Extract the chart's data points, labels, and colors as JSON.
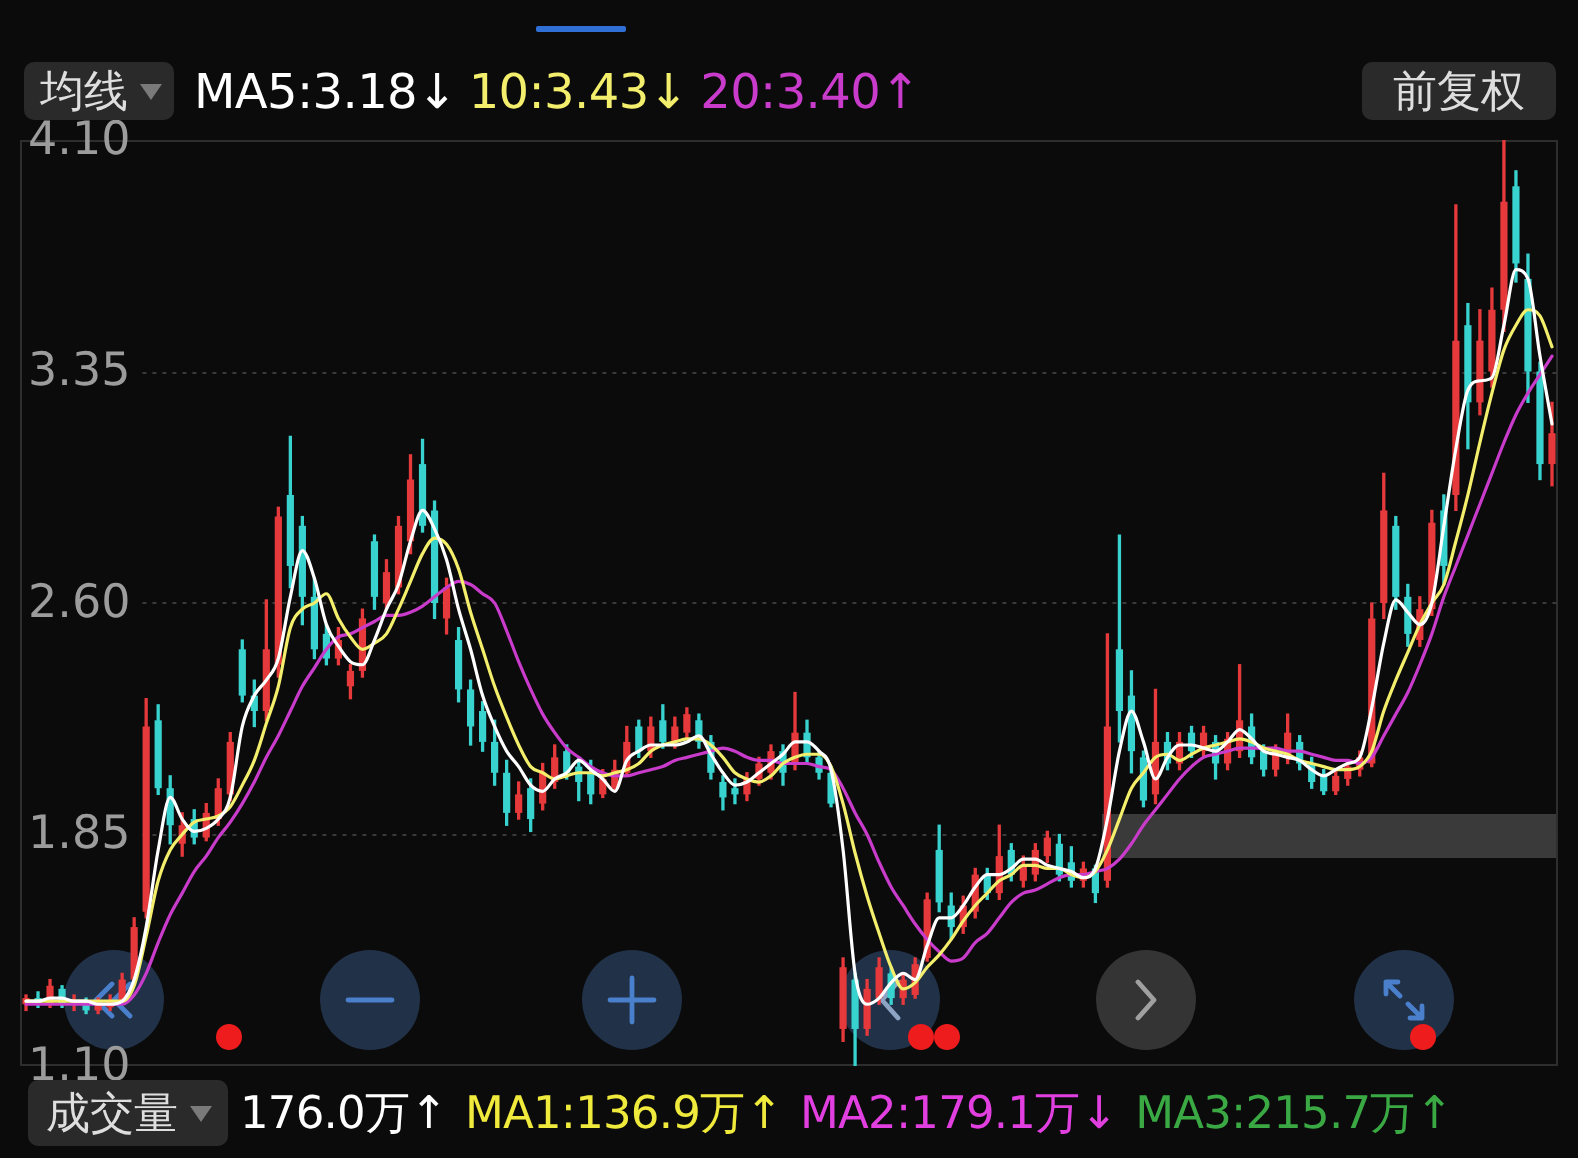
{
  "chart_data": {
    "type": "candlestick",
    "legend_title": "均线",
    "legend": "top left",
    "tick_labels": "y",
    "grid": "y",
    "marker": "none",
    "line_style": "solid",
    "annotations": [
      "前复权",
      "成交量",
      "176.0万↑",
      "MA1:136.9万↑",
      "MA2:179.1万↓",
      "MA3:215.7万↑"
    ],
    "ylim": [
      1.1,
      4.1
    ],
    "yticks": [
      {
        "value": 1.1,
        "label": "1.10"
      },
      {
        "value": 1.85,
        "label": "1.85"
      },
      {
        "value": 2.6,
        "label": "2.60"
      },
      {
        "value": 3.35,
        "label": "3.35"
      },
      {
        "value": 4.1,
        "label": "4.10"
      }
    ],
    "categories": [
      null,
      null,
      null,
      null,
      null,
      null,
      null,
      null,
      null,
      null,
      null,
      null,
      null,
      null,
      null,
      null,
      null,
      null,
      null,
      null,
      null,
      null,
      null,
      null,
      null,
      null,
      null,
      null,
      null,
      null,
      null,
      null,
      null,
      null,
      null,
      null,
      null,
      null,
      null,
      null,
      null,
      null,
      null,
      null,
      null,
      null,
      null,
      null,
      null,
      null,
      null,
      null,
      null,
      null,
      null,
      null,
      null,
      null,
      null,
      null,
      null,
      null,
      null,
      null,
      null,
      null,
      null,
      null,
      null,
      null,
      null,
      null,
      null,
      null,
      null,
      null,
      null,
      null,
      null,
      null,
      null,
      null,
      null,
      null,
      null,
      null,
      null,
      null,
      null,
      null,
      null,
      null,
      null,
      null,
      null,
      null,
      null,
      null,
      null,
      null,
      null,
      null,
      null,
      null,
      null,
      null,
      null,
      null,
      null,
      null,
      null,
      null,
      null,
      null,
      null,
      null,
      null,
      null,
      null,
      null,
      null,
      null,
      null,
      null,
      null,
      null,
      null,
      null
    ],
    "ohlc": [
      [
        1.3,
        1.33,
        1.28,
        1.32
      ],
      [
        1.32,
        1.34,
        1.29,
        1.3
      ],
      [
        1.3,
        1.38,
        1.29,
        1.36
      ],
      [
        1.35,
        1.36,
        1.29,
        1.3
      ],
      [
        1.3,
        1.33,
        1.28,
        1.31
      ],
      [
        1.31,
        1.32,
        1.27,
        1.28
      ],
      [
        1.28,
        1.32,
        1.27,
        1.3
      ],
      [
        1.29,
        1.33,
        1.28,
        1.31
      ],
      [
        1.31,
        1.4,
        1.3,
        1.38
      ],
      [
        1.38,
        1.58,
        1.37,
        1.55
      ],
      [
        1.6,
        2.29,
        1.58,
        2.2
      ],
      [
        2.22,
        2.27,
        1.98,
        2.0
      ],
      [
        2.0,
        2.04,
        1.82,
        1.88
      ],
      [
        1.82,
        1.92,
        1.78,
        1.88
      ],
      [
        1.9,
        1.93,
        1.82,
        1.84
      ],
      [
        1.84,
        1.95,
        1.83,
        1.92
      ],
      [
        1.9,
        2.03,
        1.88,
        2.0
      ],
      [
        1.98,
        2.18,
        1.96,
        2.15
      ],
      [
        2.45,
        2.48,
        2.28,
        2.3
      ],
      [
        2.3,
        2.35,
        2.2,
        2.25
      ],
      [
        2.25,
        2.61,
        2.22,
        2.45
      ],
      [
        2.4,
        2.91,
        2.36,
        2.88
      ],
      [
        2.95,
        3.14,
        2.65,
        2.72
      ],
      [
        2.85,
        2.88,
        2.53,
        2.62
      ],
      [
        2.62,
        2.68,
        2.42,
        2.45
      ],
      [
        2.5,
        2.53,
        2.4,
        2.42
      ],
      [
        2.42,
        2.52,
        2.4,
        2.48
      ],
      [
        2.33,
        2.4,
        2.29,
        2.38
      ],
      [
        2.38,
        2.58,
        2.36,
        2.55
      ],
      [
        2.8,
        2.82,
        2.58,
        2.62
      ],
      [
        2.6,
        2.74,
        2.58,
        2.7
      ],
      [
        2.65,
        2.88,
        2.63,
        2.85
      ],
      [
        2.8,
        3.08,
        2.76,
        3.0
      ],
      [
        3.05,
        3.13,
        2.83,
        2.85
      ],
      [
        2.9,
        2.93,
        2.55,
        2.6
      ],
      [
        2.55,
        2.68,
        2.5,
        2.65
      ],
      [
        2.48,
        2.52,
        2.28,
        2.32
      ],
      [
        2.32,
        2.35,
        2.14,
        2.2
      ],
      [
        2.25,
        2.28,
        2.12,
        2.15
      ],
      [
        2.15,
        2.22,
        2.01,
        2.05
      ],
      [
        2.05,
        2.09,
        1.88,
        1.92
      ],
      [
        1.92,
        2.02,
        1.9,
        1.98
      ],
      [
        2.0,
        2.03,
        1.86,
        1.9
      ],
      [
        1.95,
        2.08,
        1.93,
        2.05
      ],
      [
        2.02,
        2.14,
        2.0,
        2.1
      ],
      [
        2.12,
        2.14,
        2.03,
        2.05
      ],
      [
        2.07,
        2.1,
        1.96,
        2.02
      ],
      [
        2.05,
        2.09,
        1.95,
        1.98
      ],
      [
        1.98,
        2.06,
        1.97,
        2.03
      ],
      [
        2.0,
        2.09,
        1.99,
        2.06
      ],
      [
        2.05,
        2.2,
        2.04,
        2.15
      ],
      [
        2.2,
        2.22,
        2.1,
        2.12
      ],
      [
        2.12,
        2.23,
        2.1,
        2.2
      ],
      [
        2.22,
        2.27,
        2.13,
        2.15
      ],
      [
        2.15,
        2.23,
        2.13,
        2.2
      ],
      [
        2.18,
        2.26,
        2.16,
        2.24
      ],
      [
        2.22,
        2.24,
        2.13,
        2.15
      ],
      [
        2.15,
        2.17,
        2.03,
        2.05
      ],
      [
        2.02,
        2.04,
        1.93,
        1.97
      ],
      [
        2.0,
        2.03,
        1.95,
        1.98
      ],
      [
        1.98,
        2.05,
        1.96,
        2.03
      ],
      [
        2.03,
        2.1,
        2.01,
        2.08
      ],
      [
        2.05,
        2.14,
        2.03,
        2.12
      ],
      [
        2.12,
        2.14,
        2.01,
        2.05
      ],
      [
        2.08,
        2.31,
        2.06,
        2.18
      ],
      [
        2.18,
        2.22,
        2.08,
        2.1
      ],
      [
        2.1,
        2.12,
        2.03,
        2.05
      ],
      [
        2.05,
        2.07,
        1.94,
        1.95
      ],
      [
        1.22,
        1.45,
        1.18,
        1.42
      ],
      [
        1.38,
        1.4,
        1.1,
        1.22
      ],
      [
        1.22,
        1.38,
        1.2,
        1.35
      ],
      [
        1.32,
        1.45,
        1.3,
        1.42
      ],
      [
        1.4,
        1.42,
        1.3,
        1.32
      ],
      [
        1.32,
        1.4,
        1.3,
        1.38
      ],
      [
        1.33,
        1.45,
        1.32,
        1.43
      ],
      [
        1.45,
        1.66,
        1.44,
        1.64
      ],
      [
        1.8,
        1.88,
        1.6,
        1.63
      ],
      [
        1.62,
        1.66,
        1.51,
        1.55
      ],
      [
        1.55,
        1.65,
        1.53,
        1.62
      ],
      [
        1.6,
        1.74,
        1.58,
        1.72
      ],
      [
        1.72,
        1.74,
        1.64,
        1.66
      ],
      [
        1.66,
        1.88,
        1.64,
        1.78
      ],
      [
        1.8,
        1.82,
        1.7,
        1.72
      ],
      [
        1.7,
        1.78,
        1.68,
        1.75
      ],
      [
        1.72,
        1.82,
        1.7,
        1.8
      ],
      [
        1.78,
        1.86,
        1.76,
        1.84
      ],
      [
        1.82,
        1.85,
        1.7,
        1.72
      ],
      [
        1.76,
        1.81,
        1.68,
        1.7
      ],
      [
        1.7,
        1.76,
        1.68,
        1.74
      ],
      [
        1.74,
        1.75,
        1.63,
        1.66
      ],
      [
        1.7,
        2.5,
        1.68,
        2.2
      ],
      [
        2.45,
        2.82,
        2.15,
        2.25
      ],
      [
        2.3,
        2.38,
        2.05,
        2.12
      ],
      [
        2.1,
        2.12,
        1.94,
        1.96
      ],
      [
        1.98,
        2.32,
        1.95,
        2.15
      ],
      [
        2.15,
        2.18,
        2.06,
        2.08
      ],
      [
        2.08,
        2.18,
        2.06,
        2.15
      ],
      [
        2.18,
        2.2,
        2.1,
        2.12
      ],
      [
        2.12,
        2.2,
        2.1,
        2.18
      ],
      [
        2.15,
        2.17,
        2.03,
        2.08
      ],
      [
        2.08,
        2.18,
        2.06,
        2.16
      ],
      [
        2.12,
        2.4,
        2.1,
        2.22
      ],
      [
        2.2,
        2.24,
        2.08,
        2.1
      ],
      [
        2.12,
        2.14,
        2.04,
        2.06
      ],
      [
        2.06,
        2.14,
        2.04,
        2.12
      ],
      [
        2.1,
        2.24,
        2.08,
        2.18
      ],
      [
        2.15,
        2.17,
        2.06,
        2.08
      ],
      [
        2.08,
        2.1,
        2.0,
        2.02
      ],
      [
        2.04,
        2.06,
        1.98,
        1.99
      ],
      [
        1.99,
        2.06,
        1.98,
        2.04
      ],
      [
        2.03,
        2.09,
        2.01,
        2.07
      ],
      [
        2.06,
        2.12,
        2.04,
        2.1
      ],
      [
        2.08,
        2.6,
        2.07,
        2.55
      ],
      [
        2.6,
        3.02,
        2.55,
        2.9
      ],
      [
        2.85,
        2.88,
        2.58,
        2.62
      ],
      [
        2.62,
        2.66,
        2.46,
        2.5
      ],
      [
        2.48,
        2.62,
        2.46,
        2.58
      ],
      [
        2.58,
        2.9,
        2.56,
        2.86
      ],
      [
        2.9,
        2.95,
        2.66,
        2.72
      ],
      [
        2.95,
        3.89,
        2.9,
        3.45
      ],
      [
        3.5,
        3.57,
        3.1,
        3.25
      ],
      [
        3.25,
        3.55,
        3.21,
        3.45
      ],
      [
        3.35,
        3.62,
        3.3,
        3.55
      ],
      [
        3.55,
        4.1,
        3.48,
        3.9
      ],
      [
        3.95,
        4.0,
        3.64,
        3.7
      ],
      [
        3.65,
        3.73,
        3.25,
        3.35
      ],
      [
        3.35,
        3.38,
        3.0,
        3.05
      ],
      [
        3.05,
        3.25,
        2.98,
        3.15
      ]
    ],
    "colors": [
      "#e5393b",
      "#38d2cf",
      "#e5393b",
      "#38d2cf",
      "#e5393b",
      "#38d2cf",
      "#e5393b",
      "#e5393b",
      "#e5393b",
      "#e5393b",
      "#e5393b",
      "#38d2cf",
      "#38d2cf",
      "#e5393b",
      "#38d2cf",
      "#e5393b",
      "#e5393b",
      "#e5393b",
      "#38d2cf",
      "#38d2cf",
      "#e5393b",
      "#e5393b",
      "#38d2cf",
      "#38d2cf",
      "#38d2cf",
      "#38d2cf",
      "#e5393b",
      "#e5393b",
      "#e5393b",
      "#38d2cf",
      "#e5393b",
      "#e5393b",
      "#e5393b",
      "#38d2cf",
      "#38d2cf",
      "#e5393b",
      "#38d2cf",
      "#38d2cf",
      "#38d2cf",
      "#38d2cf",
      "#38d2cf",
      "#e5393b",
      "#38d2cf",
      "#e5393b",
      "#e5393b",
      "#38d2cf",
      "#38d2cf",
      "#38d2cf",
      "#e5393b",
      "#e5393b",
      "#e5393b",
      "#38d2cf",
      "#e5393b",
      "#38d2cf",
      "#e5393b",
      "#e5393b",
      "#38d2cf",
      "#38d2cf",
      "#38d2cf",
      "#38d2cf",
      "#e5393b",
      "#e5393b",
      "#e5393b",
      "#38d2cf",
      "#e5393b",
      "#38d2cf",
      "#38d2cf",
      "#38d2cf",
      "#e5393b",
      "#38d2cf",
      "#e5393b",
      "#e5393b",
      "#38d2cf",
      "#e5393b",
      "#e5393b",
      "#e5393b",
      "#38d2cf",
      "#38d2cf",
      "#e5393b",
      "#e5393b",
      "#38d2cf",
      "#e5393b",
      "#38d2cf",
      "#e5393b",
      "#e5393b",
      "#e5393b",
      "#38d2cf",
      "#38d2cf",
      "#e5393b",
      "#38d2cf",
      "#e5393b",
      "#38d2cf",
      "#38d2cf",
      "#38d2cf",
      "#e5393b",
      "#38d2cf",
      "#e5393b",
      "#38d2cf",
      "#e5393b",
      "#38d2cf",
      "#e5393b",
      "#e5393b",
      "#38d2cf",
      "#38d2cf",
      "#e5393b",
      "#e5393b",
      "#38d2cf",
      "#38d2cf",
      "#38d2cf",
      "#e5393b",
      "#e5393b",
      "#e5393b",
      "#e5393b",
      "#e5393b",
      "#38d2cf",
      "#38d2cf",
      "#e5393b",
      "#e5393b",
      "#38d2cf",
      "#e5393b",
      "#38d2cf",
      "#e5393b",
      "#e5393b",
      "#e5393b",
      "#38d2cf",
      "#38d2cf",
      "#38d2cf",
      "#e5393b"
    ],
    "series": [
      {
        "type": "line",
        "name": "MA5:3.18↓",
        "color": "#ffffff",
        "values": [
          1.31,
          1.31,
          1.32,
          1.32,
          1.31,
          1.31,
          1.3,
          1.3,
          1.31,
          1.38,
          1.55,
          1.8,
          1.97,
          1.9,
          1.86,
          1.87,
          1.9,
          1.97,
          2.2,
          2.3,
          2.35,
          2.42,
          2.62,
          2.77,
          2.68,
          2.53,
          2.46,
          2.41,
          2.4,
          2.48,
          2.58,
          2.66,
          2.8,
          2.9,
          2.84,
          2.74,
          2.58,
          2.45,
          2.3,
          2.2,
          2.12,
          2.07,
          2.01,
          1.99,
          2.03,
          2.05,
          2.09,
          2.06,
          2.03,
          1.99,
          2.09,
          2.12,
          2.14,
          2.14,
          2.14,
          2.15,
          2.17,
          2.11,
          2.05,
          2.01,
          2.02,
          2.05,
          2.08,
          2.11,
          2.15,
          2.15,
          2.12,
          2.06,
          1.8,
          1.4,
          1.3,
          1.32,
          1.37,
          1.4,
          1.38,
          1.49,
          1.58,
          1.58,
          1.62,
          1.68,
          1.72,
          1.72,
          1.74,
          1.77,
          1.77,
          1.75,
          1.74,
          1.73,
          1.71,
          1.74,
          1.9,
          2.12,
          2.25,
          2.15,
          2.03,
          2.1,
          2.14,
          2.14,
          2.13,
          2.12,
          2.15,
          2.19,
          2.16,
          2.12,
          2.11,
          2.1,
          2.09,
          2.06,
          2.04,
          2.06,
          2.08,
          2.1,
          2.26,
          2.47,
          2.61,
          2.57,
          2.53,
          2.6,
          2.85,
          3.1,
          3.29,
          3.32,
          3.33,
          3.5,
          3.68,
          3.65,
          3.4,
          3.18
        ]
      },
      {
        "type": "line",
        "name": "10:3.43↓",
        "color": "#f3ee6c",
        "values": [
          1.31,
          1.31,
          1.31,
          1.31,
          1.31,
          1.31,
          1.31,
          1.31,
          1.31,
          1.36,
          1.52,
          1.7,
          1.8,
          1.85,
          1.89,
          1.9,
          1.91,
          1.94,
          2.01,
          2.09,
          2.21,
          2.33,
          2.52,
          2.58,
          2.6,
          2.63,
          2.55,
          2.49,
          2.45,
          2.47,
          2.5,
          2.58,
          2.67,
          2.76,
          2.81,
          2.79,
          2.71,
          2.57,
          2.45,
          2.33,
          2.23,
          2.14,
          2.07,
          2.05,
          2.03,
          2.04,
          2.05,
          2.05,
          2.04,
          2.05,
          2.06,
          2.08,
          2.12,
          2.14,
          2.15,
          2.16,
          2.16,
          2.14,
          2.1,
          2.05,
          2.03,
          2.02,
          2.04,
          2.08,
          2.1,
          2.11,
          2.11,
          2.07,
          1.95,
          1.79,
          1.65,
          1.53,
          1.42,
          1.35,
          1.37,
          1.42,
          1.46,
          1.51,
          1.57,
          1.62,
          1.66,
          1.7,
          1.72,
          1.75,
          1.75,
          1.74,
          1.74,
          1.72,
          1.71,
          1.73,
          1.8,
          1.9,
          2.0,
          2.05,
          2.1,
          2.11,
          2.09,
          2.11,
          2.13,
          2.14,
          2.15,
          2.16,
          2.15,
          2.13,
          2.12,
          2.11,
          2.09,
          2.08,
          2.07,
          2.06,
          2.06,
          2.07,
          2.12,
          2.25,
          2.35,
          2.44,
          2.53,
          2.6,
          2.66,
          2.8,
          2.95,
          3.12,
          3.28,
          3.42,
          3.5,
          3.55,
          3.53,
          3.43
        ]
      },
      {
        "type": "line",
        "name": "20:3.40↑",
        "color": "#c93ccb",
        "values": [
          1.3,
          1.3,
          1.3,
          1.3,
          1.3,
          1.3,
          1.3,
          1.3,
          1.3,
          1.33,
          1.4,
          1.5,
          1.59,
          1.66,
          1.73,
          1.78,
          1.84,
          1.89,
          1.95,
          2.02,
          2.1,
          2.17,
          2.25,
          2.33,
          2.39,
          2.45,
          2.49,
          2.5,
          2.52,
          2.54,
          2.56,
          2.56,
          2.57,
          2.59,
          2.62,
          2.65,
          2.67,
          2.66,
          2.63,
          2.6,
          2.51,
          2.41,
          2.32,
          2.24,
          2.18,
          2.13,
          2.1,
          2.07,
          2.05,
          2.04,
          2.04,
          2.05,
          2.06,
          2.07,
          2.09,
          2.1,
          2.11,
          2.12,
          2.13,
          2.12,
          2.1,
          2.09,
          2.09,
          2.08,
          2.08,
          2.08,
          2.07,
          2.06,
          2.0,
          1.92,
          1.85,
          1.76,
          1.68,
          1.62,
          1.56,
          1.51,
          1.47,
          1.44,
          1.45,
          1.5,
          1.53,
          1.58,
          1.63,
          1.66,
          1.67,
          1.69,
          1.71,
          1.72,
          1.72,
          1.73,
          1.74,
          1.77,
          1.82,
          1.88,
          1.93,
          1.98,
          2.03,
          2.07,
          2.1,
          2.11,
          2.12,
          2.13,
          2.13,
          2.13,
          2.13,
          2.12,
          2.12,
          2.11,
          2.1,
          2.09,
          2.09,
          2.08,
          2.1,
          2.17,
          2.24,
          2.31,
          2.4,
          2.5,
          2.62,
          2.72,
          2.82,
          2.92,
          3.02,
          3.12,
          3.21,
          3.28,
          3.34,
          3.4
        ]
      }
    ]
  }
}
